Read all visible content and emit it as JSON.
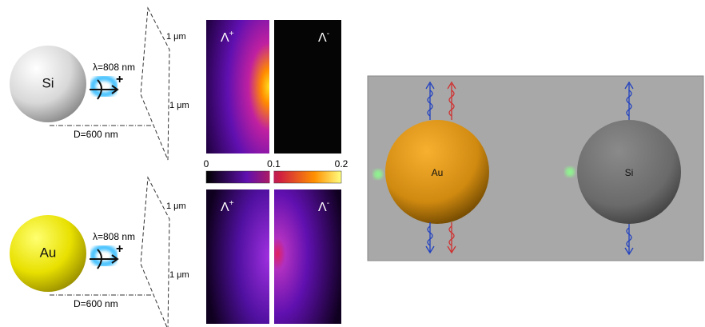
{
  "panels": [
    {
      "particle": "Si",
      "wavelength": "λ=808 nm",
      "diameter": "D=600 nm",
      "scale_labels": [
        "1 μm",
        "1 μm"
      ],
      "maps": [
        {
          "label": "Λ",
          "sup": "+"
        },
        {
          "label": "Λ",
          "sup": "-"
        }
      ]
    },
    {
      "particle": "Au",
      "wavelength": "λ=808 nm",
      "diameter": "D=600 nm",
      "scale_labels": [
        "1 μm",
        "1 μm"
      ],
      "maps": [
        {
          "label": "Λ",
          "sup": "+"
        },
        {
          "label": "Λ",
          "sup": "-"
        }
      ]
    }
  ],
  "colorbar": {
    "ticks": [
      0,
      0.1,
      0.2
    ]
  },
  "scene": {
    "particles": [
      "Au",
      "Si"
    ]
  }
}
